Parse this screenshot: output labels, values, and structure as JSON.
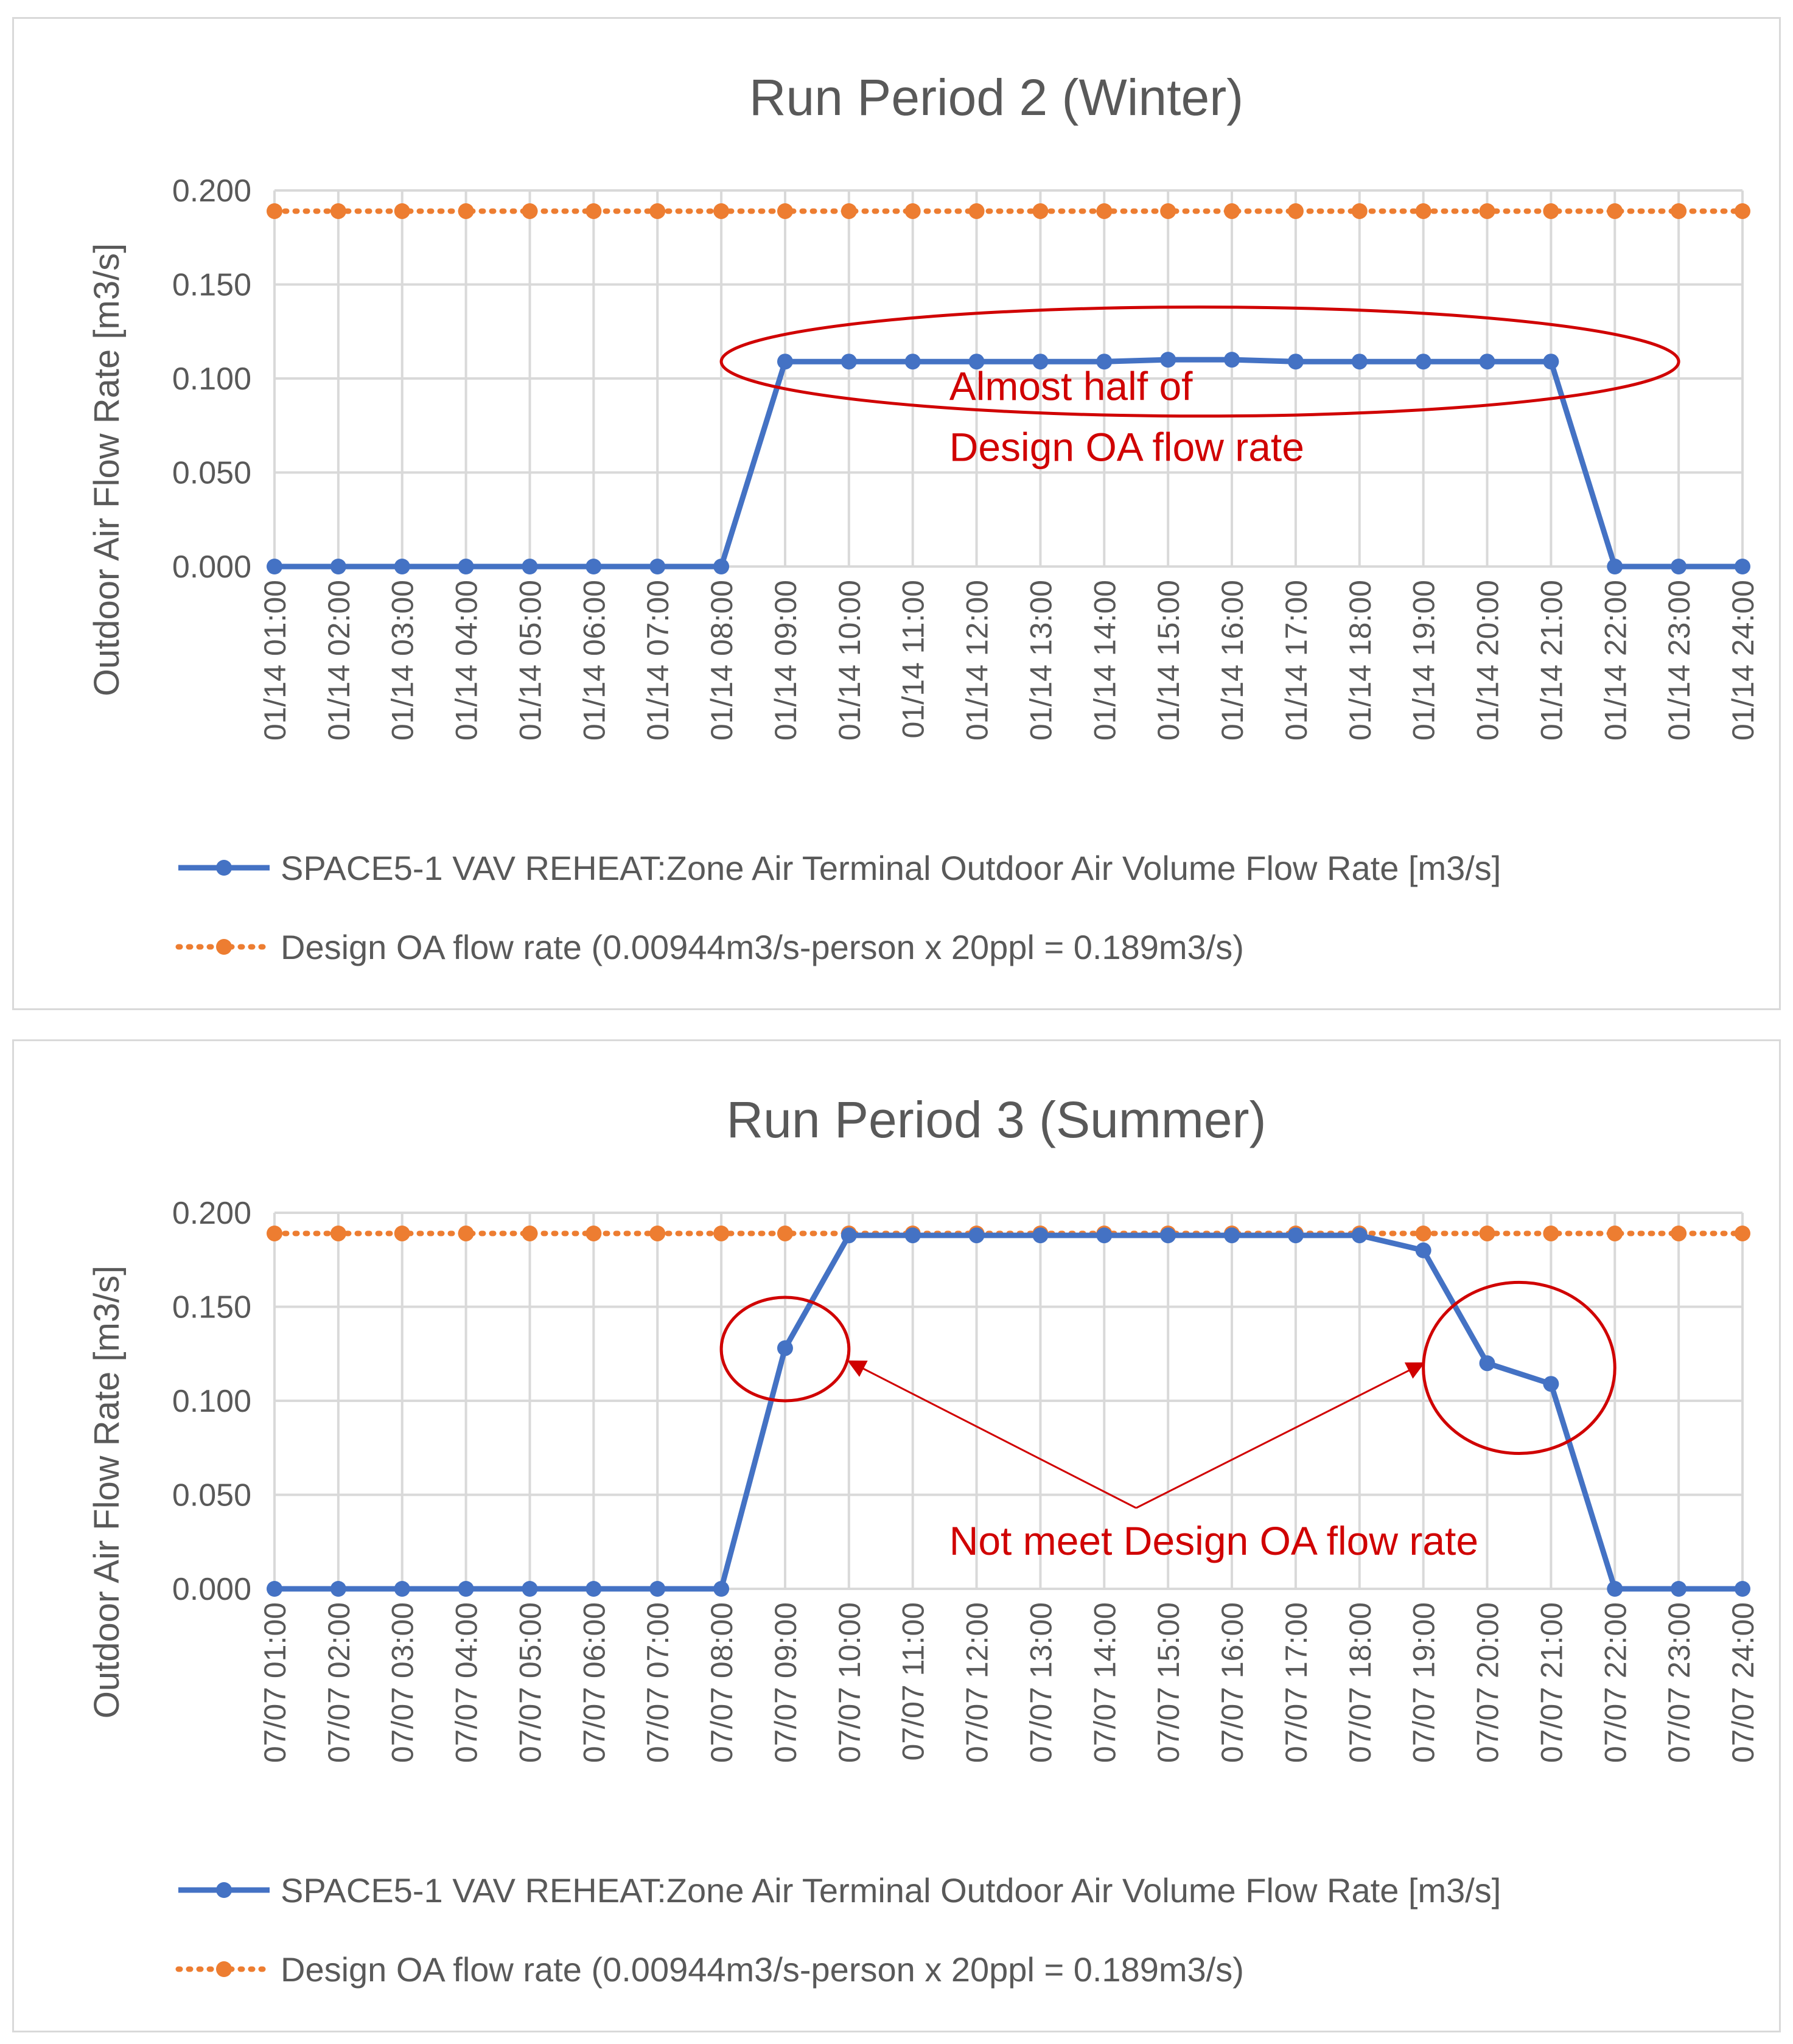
{
  "chart_data": [
    {
      "type": "line",
      "title": "Run Period 2 (Winter)",
      "ylabel": "Outdoor Air Flow Rate [m3/s]",
      "xlabel": "",
      "ylim": [
        0,
        0.2
      ],
      "yticks": [
        "0.000",
        "0.050",
        "0.100",
        "0.150",
        "0.200"
      ],
      "grid": true,
      "legend_position": "bottom",
      "categories": [
        "01/14  01:00",
        "01/14  02:00",
        "01/14  03:00",
        "01/14  04:00",
        "01/14  05:00",
        "01/14  06:00",
        "01/14  07:00",
        "01/14  08:00",
        "01/14  09:00",
        "01/14  10:00",
        "01/14  11:00",
        "01/14  12:00",
        "01/14  13:00",
        "01/14  14:00",
        "01/14  15:00",
        "01/14  16:00",
        "01/14  17:00",
        "01/14  18:00",
        "01/14  19:00",
        "01/14  20:00",
        "01/14  21:00",
        "01/14  22:00",
        "01/14  23:00",
        "01/14  24:00"
      ],
      "series": [
        {
          "name": "SPACE5-1 VAV REHEAT:Zone Air Terminal Outdoor Air Volume Flow Rate [m3/s]",
          "color": "#4472C4",
          "style": "solid",
          "values": [
            0,
            0,
            0,
            0,
            0,
            0,
            0,
            0,
            0.109,
            0.109,
            0.109,
            0.109,
            0.109,
            0.109,
            0.11,
            0.11,
            0.109,
            0.109,
            0.109,
            0.109,
            0.109,
            0,
            0,
            0
          ]
        },
        {
          "name": "Design OA flow rate (0.00944m3/s-person x 20ppl = 0.189m3/s)",
          "color": "#ED7D31",
          "style": "dotted",
          "values": [
            0.189,
            0.189,
            0.189,
            0.189,
            0.189,
            0.189,
            0.189,
            0.189,
            0.189,
            0.189,
            0.189,
            0.189,
            0.189,
            0.189,
            0.189,
            0.189,
            0.189,
            0.189,
            0.189,
            0.189,
            0.189,
            0.189,
            0.189,
            0.189
          ]
        }
      ],
      "annotations": [
        {
          "kind": "ellipse",
          "color": "#D00000",
          "x_from": "01/14  08:00",
          "x_to": "01/14  23:00",
          "y_from": 0.08,
          "y_to": 0.138
        },
        {
          "kind": "text",
          "color": "#D00000",
          "lines": [
            "Almost half of",
            "Design OA flow rate"
          ],
          "x": "01/14  11:00",
          "y": 0.06
        }
      ]
    },
    {
      "type": "line",
      "title": "Run Period 3 (Summer)",
      "ylabel": "Outdoor Air Flow Rate [m3/s]",
      "xlabel": "",
      "ylim": [
        0,
        0.2
      ],
      "yticks": [
        "0.000",
        "0.050",
        "0.100",
        "0.150",
        "0.200"
      ],
      "grid": true,
      "legend_position": "bottom",
      "categories": [
        "07/07  01:00",
        "07/07  02:00",
        "07/07  03:00",
        "07/07  04:00",
        "07/07  05:00",
        "07/07  06:00",
        "07/07  07:00",
        "07/07  08:00",
        "07/07  09:00",
        "07/07  10:00",
        "07/07  11:00",
        "07/07  12:00",
        "07/07  13:00",
        "07/07  14:00",
        "07/07  15:00",
        "07/07  16:00",
        "07/07  17:00",
        "07/07  18:00",
        "07/07  19:00",
        "07/07  20:00",
        "07/07  21:00",
        "07/07  22:00",
        "07/07  23:00",
        "07/07  24:00"
      ],
      "series": [
        {
          "name": "SPACE5-1 VAV REHEAT:Zone Air Terminal Outdoor Air Volume Flow Rate [m3/s]",
          "color": "#4472C4",
          "style": "solid",
          "values": [
            0,
            0,
            0,
            0,
            0,
            0,
            0,
            0,
            0.128,
            0.188,
            0.188,
            0.188,
            0.188,
            0.188,
            0.188,
            0.188,
            0.188,
            0.188,
            0.18,
            0.12,
            0.109,
            0,
            0,
            0
          ]
        },
        {
          "name": "Design OA flow rate (0.00944m3/s-person x 20ppl = 0.189m3/s)",
          "color": "#ED7D31",
          "style": "dotted",
          "values": [
            0.189,
            0.189,
            0.189,
            0.189,
            0.189,
            0.189,
            0.189,
            0.189,
            0.189,
            0.189,
            0.189,
            0.189,
            0.189,
            0.189,
            0.189,
            0.189,
            0.189,
            0.189,
            0.189,
            0.189,
            0.189,
            0.189,
            0.189,
            0.189
          ]
        }
      ],
      "annotations": [
        {
          "kind": "ellipse",
          "color": "#D00000",
          "x_from": "07/07  08:00",
          "x_to": "07/07  10:00",
          "y_from": 0.1,
          "y_to": 0.155
        },
        {
          "kind": "ellipse",
          "color": "#D00000",
          "x_from": "07/07  19:00",
          "x_to": "07/07  22:00",
          "y_from": 0.072,
          "y_to": 0.163
        },
        {
          "kind": "text",
          "color": "#D00000",
          "lines": [
            "Not meet Design OA flow rate"
          ],
          "x": "07/07  11:00",
          "y": 0.022
        },
        {
          "kind": "arrow",
          "color": "#D00000",
          "from": [
            "07/07  14:30",
            0.043
          ],
          "to": [
            "07/07  10:00",
            0.121
          ]
        },
        {
          "kind": "arrow",
          "color": "#D00000",
          "from": [
            "07/07  14:30",
            0.043
          ],
          "to": [
            "07/07  19:00",
            0.12
          ]
        }
      ]
    }
  ]
}
